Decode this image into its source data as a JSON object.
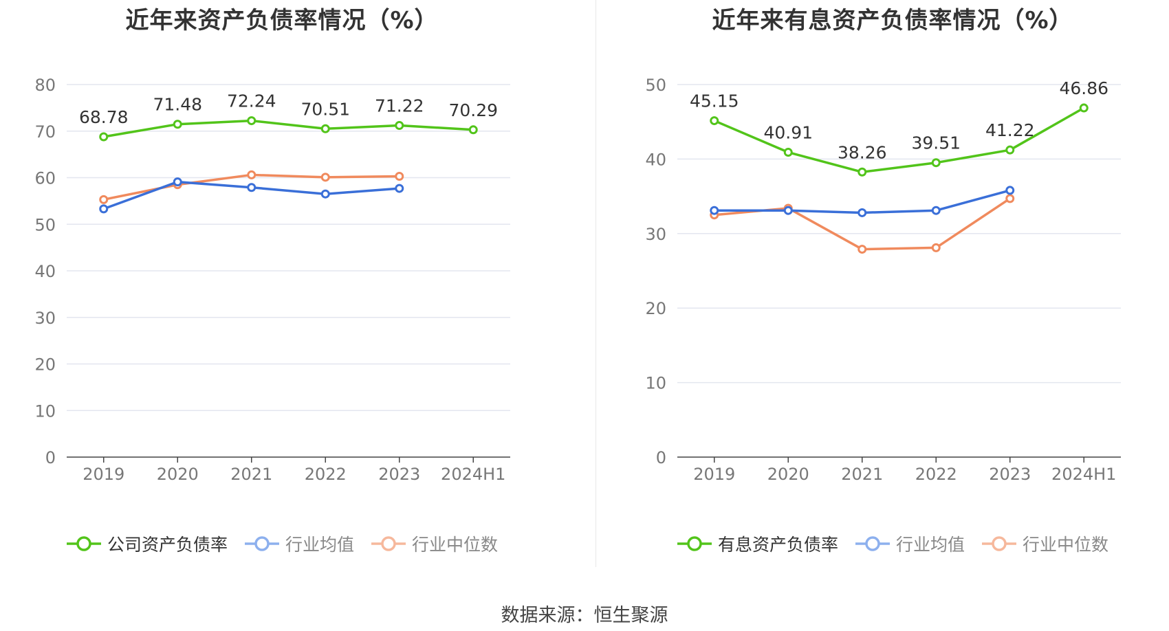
{
  "source_label": "数据来源：恒生聚源",
  "chart_data": [
    {
      "type": "line",
      "title": "近年来资产负债率情况（%）",
      "categories": [
        "2019",
        "2020",
        "2021",
        "2022",
        "2023",
        "2024H1"
      ],
      "ylim": [
        0,
        80
      ],
      "yticks": [
        0,
        10,
        20,
        30,
        40,
        50,
        60,
        70,
        80
      ],
      "grid": true,
      "legend_position": "bottom",
      "series": [
        {
          "name": "公司资产负债率",
          "color": "#52c41a",
          "values": [
            68.78,
            71.48,
            72.24,
            70.51,
            71.22,
            70.29
          ],
          "show_labels": true
        },
        {
          "name": "行业均值",
          "color": "#3a6fd8",
          "legend_color": "#8db0ee",
          "values": [
            53.3,
            59.1,
            57.9,
            56.5,
            57.7,
            null
          ],
          "show_labels": false
        },
        {
          "name": "行业中位数",
          "color": "#f08a5d",
          "legend_color": "#f6b89c",
          "values": [
            55.3,
            58.5,
            60.6,
            60.1,
            60.3,
            null
          ],
          "show_labels": false
        }
      ]
    },
    {
      "type": "line",
      "title": "近年来有息资产负债率情况（%）",
      "categories": [
        "2019",
        "2020",
        "2021",
        "2022",
        "2023",
        "2024H1"
      ],
      "ylim": [
        0,
        50
      ],
      "yticks": [
        0,
        10,
        20,
        30,
        40,
        50
      ],
      "grid": true,
      "legend_position": "bottom",
      "series": [
        {
          "name": "有息资产负债率",
          "color": "#52c41a",
          "values": [
            45.15,
            40.91,
            38.26,
            39.51,
            41.22,
            46.86
          ],
          "show_labels": true
        },
        {
          "name": "行业均值",
          "color": "#3a6fd8",
          "legend_color": "#8db0ee",
          "values": [
            33.1,
            33.1,
            32.8,
            33.1,
            35.8,
            null
          ],
          "show_labels": false
        },
        {
          "name": "行业中位数",
          "color": "#f08a5d",
          "legend_color": "#f6b89c",
          "values": [
            32.5,
            33.4,
            27.9,
            28.1,
            34.7,
            null
          ],
          "show_labels": false
        }
      ]
    }
  ]
}
